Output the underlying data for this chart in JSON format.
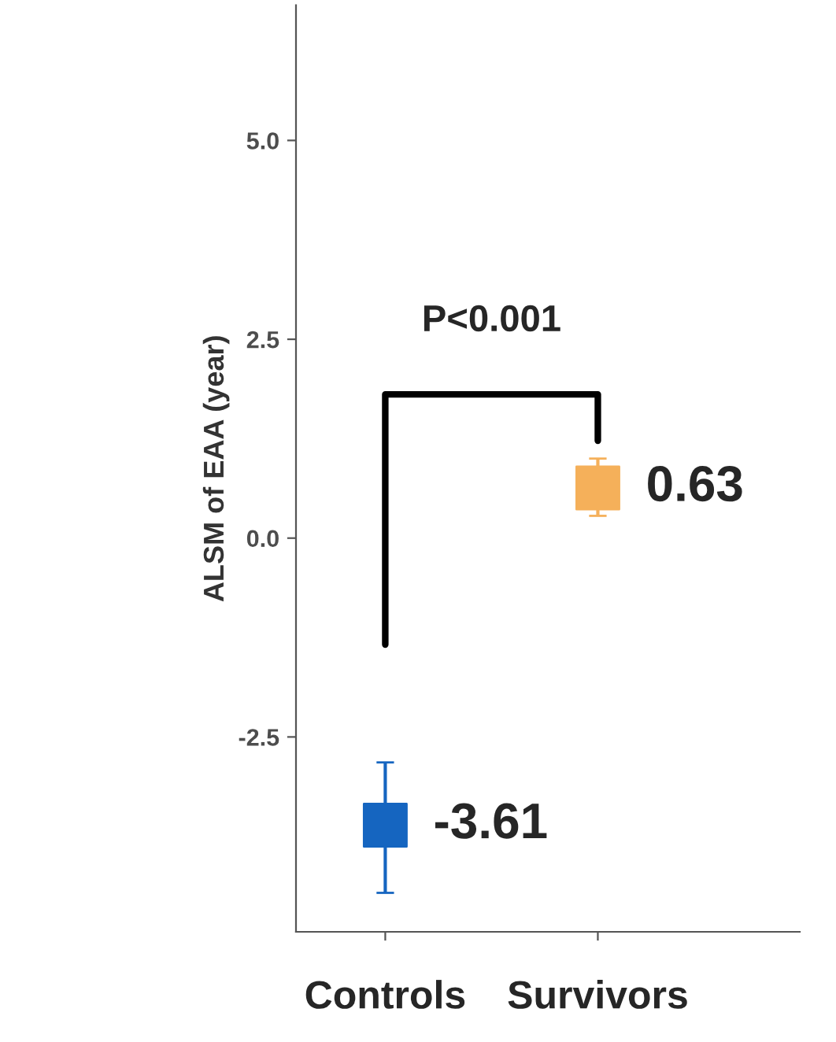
{
  "chart_data": {
    "type": "scatter",
    "ylabel": "ALSM of EAA (year)",
    "categories": [
      "Controls",
      "Survivors"
    ],
    "series": [
      {
        "color": "#1565c0",
        "values": [
          -3.61,
          null
        ],
        "errors": [
          [
            -4.46,
            -2.82
          ],
          null
        ]
      },
      {
        "color": "#f5b05a",
        "values": [
          null,
          0.63
        ],
        "errors": [
          null,
          [
            0.28,
            1.0
          ]
        ]
      }
    ],
    "ylim": [
      -4.95,
      6.7
    ],
    "yticks": [
      {
        "value": 5,
        "label": "5.0"
      },
      {
        "value": 2.5,
        "label": "2.5"
      },
      {
        "value": 0,
        "label": "0.0"
      },
      {
        "value": -2.5,
        "label": "-2.5"
      }
    ],
    "marker": "square",
    "grid": false,
    "data_labels": true,
    "annotations": [
      "P<0.001"
    ]
  }
}
